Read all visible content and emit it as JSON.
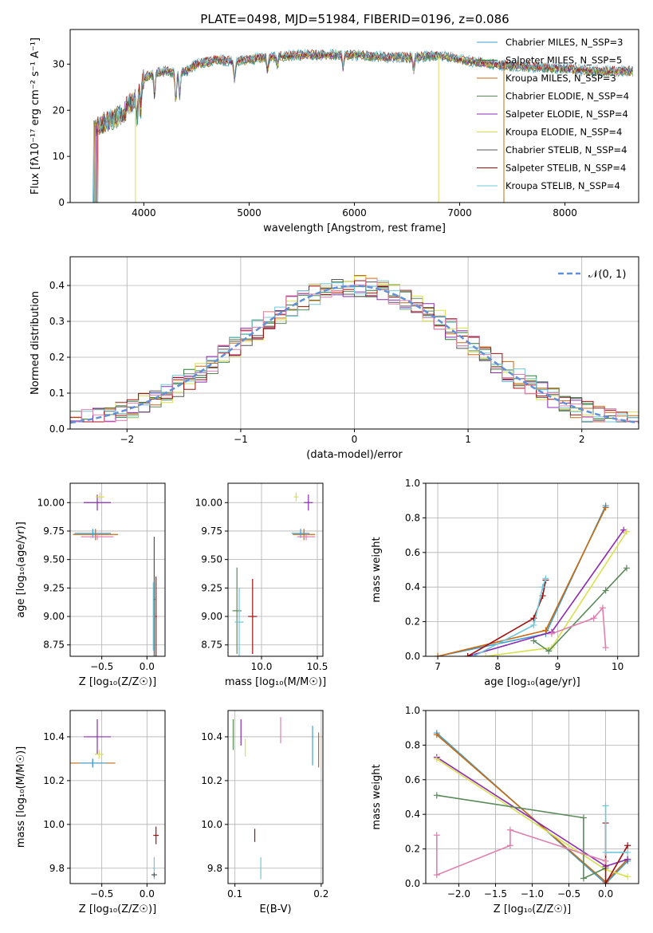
{
  "figure": {
    "title": "PLATE=0498, MJD=51984, FIBERID=0196, z=0.086"
  },
  "colors": [
    "#3f9fd2",
    "#2a7a3a",
    "#c86a10",
    "#5a8a5a",
    "#8c2ab4",
    "#d8e050",
    "#555555",
    "#a01010",
    "#70c8d8",
    "#e080b0"
  ],
  "chart_data": [
    {
      "id": "spectrum",
      "type": "line",
      "title": "PLATE=0498, MJD=51984, FIBERID=0196, z=0.086",
      "xlabel": "wavelength [Angstrom, rest frame]",
      "ylabel": "Flux [fλ10⁻¹⁷ erg cm⁻² s⁻¹ A⁻¹]",
      "xlim": [
        3300,
        8700
      ],
      "ylim": [
        0,
        37.5
      ],
      "xticks": [
        4000,
        5000,
        6000,
        7000,
        8000
      ],
      "yticks": [
        0,
        10,
        20,
        30
      ],
      "grid": false,
      "legend_position": "right",
      "continuum": {
        "x": [
          3500,
          3520,
          3600,
          3700,
          3800,
          3850,
          3900,
          3950,
          4000,
          4100,
          4200,
          4300,
          4400,
          4500,
          4700,
          4860,
          5000,
          5200,
          5500,
          5800,
          6000,
          6300,
          6600,
          6800,
          7000,
          7300,
          7600,
          8000,
          8300,
          8600
        ],
        "y": [
          0,
          16,
          17,
          18,
          19,
          21,
          22,
          24,
          27,
          28,
          28.5,
          28,
          28.5,
          30,
          31,
          30.5,
          31,
          31.5,
          32,
          32,
          32,
          31.5,
          31.5,
          32,
          31,
          30,
          29.5,
          29,
          28.5,
          28.5
        ]
      },
      "series": [
        {
          "name": "Chabrier MILES, N_SSP=3",
          "color": "#3f9fd2"
        },
        {
          "name": "Salpeter MILES, N_SSP=5",
          "color": "#2a7a3a"
        },
        {
          "name": "Kroupa MILES, N_SSP=3",
          "color": "#c86a10"
        },
        {
          "name": "Chabrier ELODIE, N_SSP=4",
          "color": "#5a8a5a"
        },
        {
          "name": "Salpeter ELODIE, N_SSP=4",
          "color": "#8c2ab4"
        },
        {
          "name": "Kroupa ELODIE, N_SSP=4",
          "color": "#d8e050"
        },
        {
          "name": "Chabrier STELIB, N_SSP=4",
          "color": "#555555"
        },
        {
          "name": "Salpeter STELIB, N_SSP=4",
          "color": "#a01010"
        },
        {
          "name": "Kroupa STELIB, N_SSP=4",
          "color": "#70c8d8"
        }
      ],
      "drops": [
        {
          "x": 3920,
          "color": "#d8e050"
        },
        {
          "x": 6800,
          "color": "#d8e050"
        },
        {
          "x": 7420,
          "color": "#c86a10"
        }
      ]
    },
    {
      "id": "residuals",
      "type": "line",
      "xlabel": "(data-model)/error",
      "ylabel": "Normed distribution",
      "xlim": [
        -2.5,
        2.5
      ],
      "ylim": [
        0,
        0.48
      ],
      "xticks": [
        -2,
        -1,
        0,
        1,
        2
      ],
      "yticks": [
        0.0,
        0.1,
        0.2,
        0.3,
        0.4
      ],
      "grid": true,
      "legend_position": "top-right",
      "gaussian_label": "𝒩(0, 1)",
      "gaussian_color": "#6090d8"
    },
    {
      "id": "age_vs_Z",
      "type": "scatter",
      "xlabel": "Z [log₁₀(Z/Z☉)]",
      "ylabel": "age  [log₁₀(age/yr)]",
      "xlim": [
        -0.85,
        0.2
      ],
      "ylim": [
        8.65,
        10.17
      ],
      "xticks": [
        -0.5,
        0.0
      ],
      "yticks": [
        8.75,
        9.0,
        9.25,
        9.5,
        9.75,
        10.0
      ],
      "grid": true,
      "points": [
        {
          "x": -0.55,
          "y": 10.0,
          "xerr": 0.15,
          "yerr": 0.07,
          "color": "#8c2ab4"
        },
        {
          "x": -0.52,
          "y": 10.05,
          "xerr": 0.05,
          "yerr": 0.04,
          "color": "#d8e050"
        },
        {
          "x": -0.57,
          "y": 9.72,
          "xerr": 0.25,
          "yerr": 0.05,
          "color": "#c86a10"
        },
        {
          "x": -0.6,
          "y": 9.73,
          "xerr": 0.2,
          "yerr": 0.04,
          "color": "#3f9fd2"
        },
        {
          "x": -0.55,
          "y": 9.7,
          "xerr": 0.18,
          "yerr": 0.03,
          "color": "#e080b0"
        },
        {
          "x": 0.08,
          "y": 9.15,
          "xerr": 0.01,
          "yerr": 0.55,
          "color": "#555555"
        },
        {
          "x": 0.1,
          "y": 9.0,
          "xerr": 0.01,
          "yerr": 0.35,
          "color": "#a01010"
        },
        {
          "x": 0.07,
          "y": 9.0,
          "xerr": 0.01,
          "yerr": 0.3,
          "color": "#70c8d8"
        }
      ]
    },
    {
      "id": "age_vs_mass",
      "type": "scatter",
      "xlabel": "mass [log₁₀(M/M☉)]",
      "ylabel": "",
      "xlim": [
        9.7,
        10.55
      ],
      "ylim": [
        8.65,
        10.17
      ],
      "xticks": [
        10.0,
        10.5
      ],
      "yticks": [
        8.75,
        9.0,
        9.25,
        9.5,
        9.75,
        10.0
      ],
      "grid": true,
      "points": [
        {
          "x": 10.42,
          "y": 10.0,
          "xerr": 0.04,
          "yerr": 0.07,
          "color": "#8c2ab4"
        },
        {
          "x": 10.31,
          "y": 10.05,
          "xerr": 0.02,
          "yerr": 0.04,
          "color": "#d8e050"
        },
        {
          "x": 10.38,
          "y": 9.72,
          "xerr": 0.1,
          "yerr": 0.05,
          "color": "#c86a10"
        },
        {
          "x": 10.35,
          "y": 9.73,
          "xerr": 0.08,
          "yerr": 0.04,
          "color": "#3f9fd2"
        },
        {
          "x": 10.4,
          "y": 9.7,
          "xerr": 0.08,
          "yerr": 0.03,
          "color": "#e080b0"
        },
        {
          "x": 9.78,
          "y": 9.05,
          "xerr": 0.04,
          "yerr": 0.38,
          "color": "#5a8a5a"
        },
        {
          "x": 9.92,
          "y": 9.0,
          "xerr": 0.04,
          "yerr": 0.33,
          "color": "#a01010"
        },
        {
          "x": 9.8,
          "y": 8.95,
          "xerr": 0.04,
          "yerr": 0.3,
          "color": "#70c8d8"
        }
      ]
    },
    {
      "id": "weight_vs_age",
      "type": "line",
      "xlabel": "age  [log₁₀(age/yr)]",
      "ylabel": "mass weight",
      "xlim": [
        6.8,
        10.35
      ],
      "ylim": [
        0,
        1.0
      ],
      "xticks": [
        7,
        8,
        9,
        10
      ],
      "yticks": [
        0.0,
        0.2,
        0.4,
        0.6,
        0.8,
        1.0
      ],
      "grid": true,
      "series": [
        {
          "color": "#3f9fd2",
          "x": [
            7.0,
            8.8,
            9.8
          ],
          "y": [
            0.0,
            0.13,
            0.87
          ]
        },
        {
          "color": "#c86a10",
          "x": [
            7.0,
            8.8,
            9.8
          ],
          "y": [
            0.0,
            0.15,
            0.86
          ]
        },
        {
          "color": "#8c2ab4",
          "x": [
            7.5,
            8.9,
            10.1
          ],
          "y": [
            0.0,
            0.14,
            0.73
          ]
        },
        {
          "color": "#d8e050",
          "x": [
            7.8,
            8.9,
            10.15
          ],
          "y": [
            0.0,
            0.05,
            0.72
          ]
        },
        {
          "color": "#5a8a5a",
          "x": [
            8.6,
            8.85,
            9.8,
            10.15
          ],
          "y": [
            0.09,
            0.03,
            0.38,
            0.51
          ]
        },
        {
          "color": "#a01010",
          "x": [
            7.5,
            8.6,
            8.75,
            8.8
          ],
          "y": [
            0.0,
            0.22,
            0.35,
            0.44
          ]
        },
        {
          "color": "#70c8d8",
          "x": [
            7.6,
            8.6,
            8.75,
            8.8
          ],
          "y": [
            0.0,
            0.18,
            0.4,
            0.45
          ]
        },
        {
          "color": "#e080b0",
          "x": [
            8.9,
            9.6,
            9.75,
            9.8
          ],
          "y": [
            0.13,
            0.22,
            0.28,
            0.05
          ]
        }
      ]
    },
    {
      "id": "mass_vs_Z",
      "type": "scatter",
      "xlabel": "Z [log₁₀(Z/Z☉)]",
      "ylabel": "mass [log₁₀(M/M☉)]",
      "xlim": [
        -0.85,
        0.2
      ],
      "ylim": [
        9.73,
        10.52
      ],
      "xticks": [
        -0.5,
        0.0
      ],
      "yticks": [
        9.8,
        10.0,
        10.2,
        10.4
      ],
      "grid": true,
      "points": [
        {
          "x": -0.55,
          "y": 10.4,
          "xerr": 0.15,
          "yerr": 0.08,
          "color": "#8c2ab4"
        },
        {
          "x": -0.53,
          "y": 10.32,
          "xerr": 0.05,
          "yerr": 0.02,
          "color": "#d8e050"
        },
        {
          "x": -0.6,
          "y": 10.28,
          "xerr": 0.25,
          "yerr": 0.02,
          "color": "#c86a10"
        },
        {
          "x": -0.6,
          "y": 10.28,
          "xerr": 0.15,
          "yerr": 0.02,
          "color": "#3f9fd2"
        },
        {
          "x": 0.1,
          "y": 9.95,
          "xerr": 0.03,
          "yerr": 0.04,
          "color": "#a01010"
        },
        {
          "x": 0.08,
          "y": 9.8,
          "xerr": 0.01,
          "yerr": 0.05,
          "color": "#70c8d8"
        },
        {
          "x": 0.08,
          "y": 9.77,
          "xerr": 0.03,
          "yerr": 0.01,
          "color": "#555555"
        }
      ]
    },
    {
      "id": "mass_vs_ebv",
      "type": "scatter",
      "xlabel": "E(B-V)",
      "ylabel": "",
      "xlim": [
        0.092,
        0.202
      ],
      "ylim": [
        9.73,
        10.52
      ],
      "xticks": [
        0.1,
        0.2
      ],
      "yticks": [
        9.8,
        10.0,
        10.2,
        10.4
      ],
      "grid": true,
      "points": [
        {
          "x": 0.098,
          "y": 10.41,
          "xerr": 0,
          "yerr": 0.07,
          "color": "#5a8a5a"
        },
        {
          "x": 0.107,
          "y": 10.42,
          "xerr": 0,
          "yerr": 0.06,
          "color": "#8c2ab4"
        },
        {
          "x": 0.112,
          "y": 10.35,
          "xerr": 0,
          "yerr": 0.04,
          "color": "#d8e050"
        },
        {
          "x": 0.123,
          "y": 9.95,
          "xerr": 0,
          "yerr": 0.03,
          "color": "#a01010"
        },
        {
          "x": 0.13,
          "y": 9.8,
          "xerr": 0,
          "yerr": 0.05,
          "color": "#70c8d8"
        },
        {
          "x": 0.153,
          "y": 10.43,
          "xerr": 0,
          "yerr": 0.06,
          "color": "#e080b0"
        },
        {
          "x": 0.19,
          "y": 10.36,
          "xerr": 0,
          "yerr": 0.09,
          "color": "#3f9fd2"
        },
        {
          "x": 0.197,
          "y": 10.34,
          "xerr": 0,
          "yerr": 0.08,
          "color": "#c86a10"
        }
      ]
    },
    {
      "id": "weight_vs_Z",
      "type": "line",
      "xlabel": "Z [log₁₀(Z/Z☉)]",
      "ylabel": "mass weight",
      "xlim": [
        -2.45,
        0.45
      ],
      "ylim": [
        0,
        1.0
      ],
      "xticks": [
        -2.0,
        -1.5,
        -1.0,
        -0.5,
        0.0
      ],
      "yticks": [
        0.0,
        0.2,
        0.4,
        0.6,
        0.8,
        1.0
      ],
      "grid": true,
      "series": [
        {
          "color": "#3f9fd2",
          "x": [
            -2.3,
            0.0,
            0.3
          ],
          "y": [
            0.87,
            0.0,
            0.13
          ]
        },
        {
          "color": "#c86a10",
          "x": [
            -2.3,
            0.0,
            0.3
          ],
          "y": [
            0.86,
            0.01,
            0.14
          ]
        },
        {
          "color": "#8c2ab4",
          "x": [
            -2.3,
            0.0,
            0.3
          ],
          "y": [
            0.73,
            0.1,
            0.14
          ]
        },
        {
          "color": "#d8e050",
          "x": [
            -2.3,
            0.0,
            0.3
          ],
          "y": [
            0.72,
            0.08,
            0.04
          ]
        },
        {
          "color": "#5a8a5a",
          "x": [
            -2.3,
            -0.3,
            -0.3,
            0.0
          ],
          "y": [
            0.51,
            0.38,
            0.03,
            0.09
          ]
        },
        {
          "color": "#a01010",
          "x": [
            0.0,
            0.0,
            0.3
          ],
          "y": [
            0.35,
            0.0,
            0.22
          ]
        },
        {
          "color": "#70c8d8",
          "x": [
            0.0,
            0.0,
            0.3
          ],
          "y": [
            0.45,
            0.18,
            0.18
          ]
        },
        {
          "color": "#e080b0",
          "x": [
            -2.3,
            -2.3,
            -1.3,
            -1.3,
            0.0
          ],
          "y": [
            0.28,
            0.05,
            0.22,
            0.31,
            0.13
          ]
        }
      ]
    }
  ]
}
